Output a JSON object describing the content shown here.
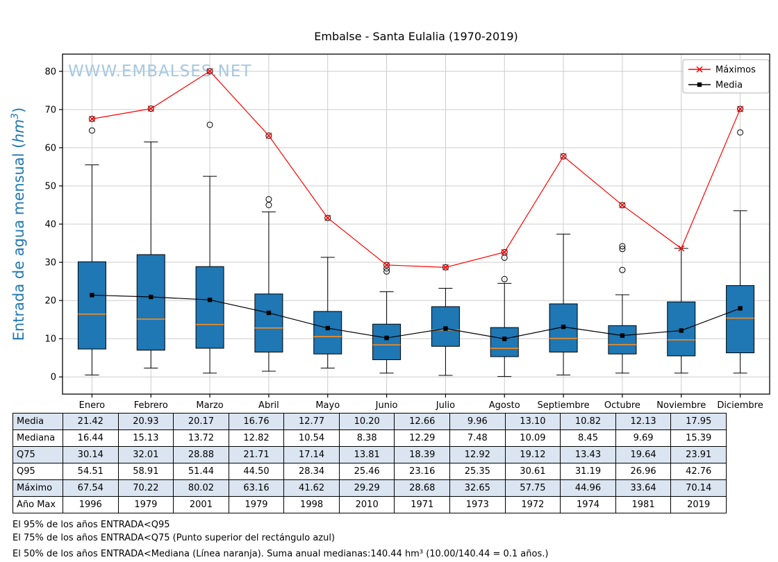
{
  "watermark": "WWW.EMBALSES.NET",
  "chart_data": {
    "type": "boxplot",
    "title": "Embalse - Santa Eulalia (1970-2019)",
    "categories": [
      "Enero",
      "Febrero",
      "Marzo",
      "Abril",
      "Mayo",
      "Junio",
      "Julio",
      "Agosto",
      "Septiembre",
      "Octubre",
      "Noviembre",
      "Diciembre"
    ],
    "ylim": [
      0,
      80
    ],
    "yticks": [
      0,
      10,
      20,
      30,
      40,
      50,
      60,
      70,
      80
    ],
    "ylabel": {
      "pre": "Entrada de agua mensual (",
      "math": "hm",
      "sup": "3",
      "post": ")"
    },
    "grid": true,
    "legend_position": "upper right",
    "series": [
      {
        "name": "Máximos",
        "type": "line",
        "color": "#ff0000",
        "marker": "x",
        "values": [
          67.54,
          70.22,
          80.02,
          63.16,
          41.62,
          29.29,
          28.68,
          32.65,
          57.75,
          44.96,
          33.64,
          70.14
        ]
      },
      {
        "name": "Media",
        "type": "line",
        "color": "#000000",
        "marker": "square",
        "values": [
          21.42,
          20.93,
          20.17,
          16.76,
          12.77,
          10.2,
          12.66,
          9.96,
          13.1,
          10.82,
          12.13,
          17.95
        ]
      }
    ],
    "boxes": [
      {
        "q25": 7.3,
        "median": 16.44,
        "q75": 30.14,
        "whisker_low": 0.5,
        "whisker_high": 55.5,
        "outliers": [
          64.5,
          67.54
        ]
      },
      {
        "q25": 7.0,
        "median": 15.13,
        "q75": 32.01,
        "whisker_low": 2.3,
        "whisker_high": 61.5,
        "outliers": [
          70.22
        ]
      },
      {
        "q25": 7.5,
        "median": 13.72,
        "q75": 28.88,
        "whisker_low": 1.0,
        "whisker_high": 52.5,
        "outliers": [
          66.0,
          80.02
        ]
      },
      {
        "q25": 6.5,
        "median": 12.82,
        "q75": 21.71,
        "whisker_low": 1.5,
        "whisker_high": 43.2,
        "outliers": [
          45.0,
          46.5,
          63.16
        ]
      },
      {
        "q25": 6.0,
        "median": 10.54,
        "q75": 17.14,
        "whisker_low": 2.3,
        "whisker_high": 31.3,
        "outliers": [
          41.62
        ]
      },
      {
        "q25": 4.5,
        "median": 8.38,
        "q75": 13.81,
        "whisker_low": 1.0,
        "whisker_high": 22.3,
        "outliers": [
          27.6,
          28.4,
          29.29
        ]
      },
      {
        "q25": 8.0,
        "median": 12.29,
        "q75": 18.39,
        "whisker_low": 0.4,
        "whisker_high": 23.2,
        "outliers": [
          28.68
        ]
      },
      {
        "q25": 5.3,
        "median": 7.48,
        "q75": 12.92,
        "whisker_low": 0.1,
        "whisker_high": 24.5,
        "outliers": [
          25.6,
          31.2,
          32.65
        ]
      },
      {
        "q25": 6.5,
        "median": 10.09,
        "q75": 19.12,
        "whisker_low": 0.5,
        "whisker_high": 37.4,
        "outliers": [
          57.75
        ]
      },
      {
        "q25": 6.0,
        "median": 8.45,
        "q75": 13.43,
        "whisker_low": 1.0,
        "whisker_high": 21.5,
        "outliers": [
          28.0,
          33.5,
          34.2,
          44.96
        ]
      },
      {
        "q25": 5.5,
        "median": 9.69,
        "q75": 19.64,
        "whisker_low": 1.0,
        "whisker_high": 33.64,
        "outliers": []
      },
      {
        "q25": 6.3,
        "median": 15.39,
        "q75": 23.91,
        "whisker_low": 1.0,
        "whisker_high": 43.5,
        "outliers": [
          64.0,
          70.14
        ]
      }
    ],
    "colors": {
      "box_fill": "#1f77b4",
      "box_edge": "#000000",
      "median": "#ff8c1a",
      "grid": "#cccccc",
      "axis_label": "#1f77b4",
      "watermark": "#a5c8e1",
      "maximos": "#ff0000",
      "media": "#000000"
    }
  },
  "table": {
    "row_labels": [
      "Media",
      "Mediana",
      "Q75",
      "Q95",
      "Máximo",
      "Año Max"
    ],
    "rows": [
      [
        "21.42",
        "20.93",
        "20.17",
        "16.76",
        "12.77",
        "10.20",
        "12.66",
        "9.96",
        "13.10",
        "10.82",
        "12.13",
        "17.95"
      ],
      [
        "16.44",
        "15.13",
        "13.72",
        "12.82",
        "10.54",
        "8.38",
        "12.29",
        "7.48",
        "10.09",
        "8.45",
        "9.69",
        "15.39"
      ],
      [
        "30.14",
        "32.01",
        "28.88",
        "21.71",
        "17.14",
        "13.81",
        "18.39",
        "12.92",
        "19.12",
        "13.43",
        "19.64",
        "23.91"
      ],
      [
        "54.51",
        "58.91",
        "51.44",
        "44.50",
        "28.34",
        "25.46",
        "23.16",
        "25.35",
        "30.61",
        "31.19",
        "26.96",
        "42.76"
      ],
      [
        "67.54",
        "70.22",
        "80.02",
        "63.16",
        "41.62",
        "29.29",
        "28.68",
        "32.65",
        "57.75",
        "44.96",
        "33.64",
        "70.14"
      ],
      [
        "1996",
        "1979",
        "2001",
        "1979",
        "1998",
        "2010",
        "1971",
        "1973",
        "1972",
        "1974",
        "1981",
        "2019"
      ]
    ]
  },
  "footer_lines": [
    "El 95% de los años ENTRADA<Q95",
    "El 75% de los años ENTRADA<Q75 (Punto superior del rectángulo azul)",
    "El 50% de los años ENTRADA<Mediana (Línea naranja). Suma anual medianas:140.44 hm³ (10.00/140.44 = 0.1 años.)"
  ]
}
